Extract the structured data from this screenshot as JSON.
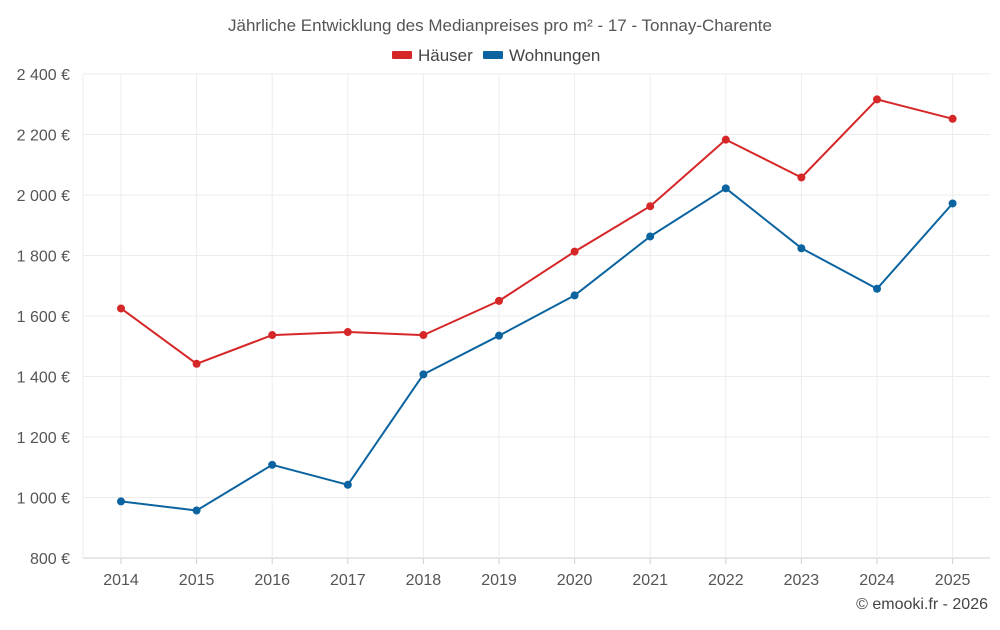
{
  "chart_data": {
    "type": "line",
    "title": "Jährliche Entwicklung des Medianpreises pro m² - 17 - Tonnay-Charente",
    "categories": [
      "2014",
      "2015",
      "2016",
      "2017",
      "2018",
      "2019",
      "2020",
      "2021",
      "2022",
      "2023",
      "2024",
      "2025"
    ],
    "series": [
      {
        "name": "Häuser",
        "color": "#d62728",
        "values": [
          1625,
          1442,
          1537,
          1547,
          1537,
          1650,
          1813,
          1963,
          2183,
          2058,
          2316,
          2252
        ]
      },
      {
        "name": "Wohnungen",
        "color": "#0b64a0",
        "values": [
          987,
          957,
          1108,
          1042,
          1407,
          1535,
          1668,
          1863,
          2022,
          1824,
          1690,
          1972
        ]
      }
    ],
    "ylim": [
      800,
      2400
    ],
    "yticks": [
      800,
      1000,
      1200,
      1400,
      1600,
      1800,
      2000,
      2200,
      2400
    ],
    "ytick_labels": [
      "800 €",
      "1 000 €",
      "1 200 €",
      "1 400 €",
      "1 600 €",
      "1 800 €",
      "2 000 €",
      "2 200 €",
      "2 400 €"
    ],
    "xlabel": "",
    "ylabel": "",
    "grid": true,
    "legend": "top-center"
  },
  "credit": "© emooki.fr - 2026"
}
